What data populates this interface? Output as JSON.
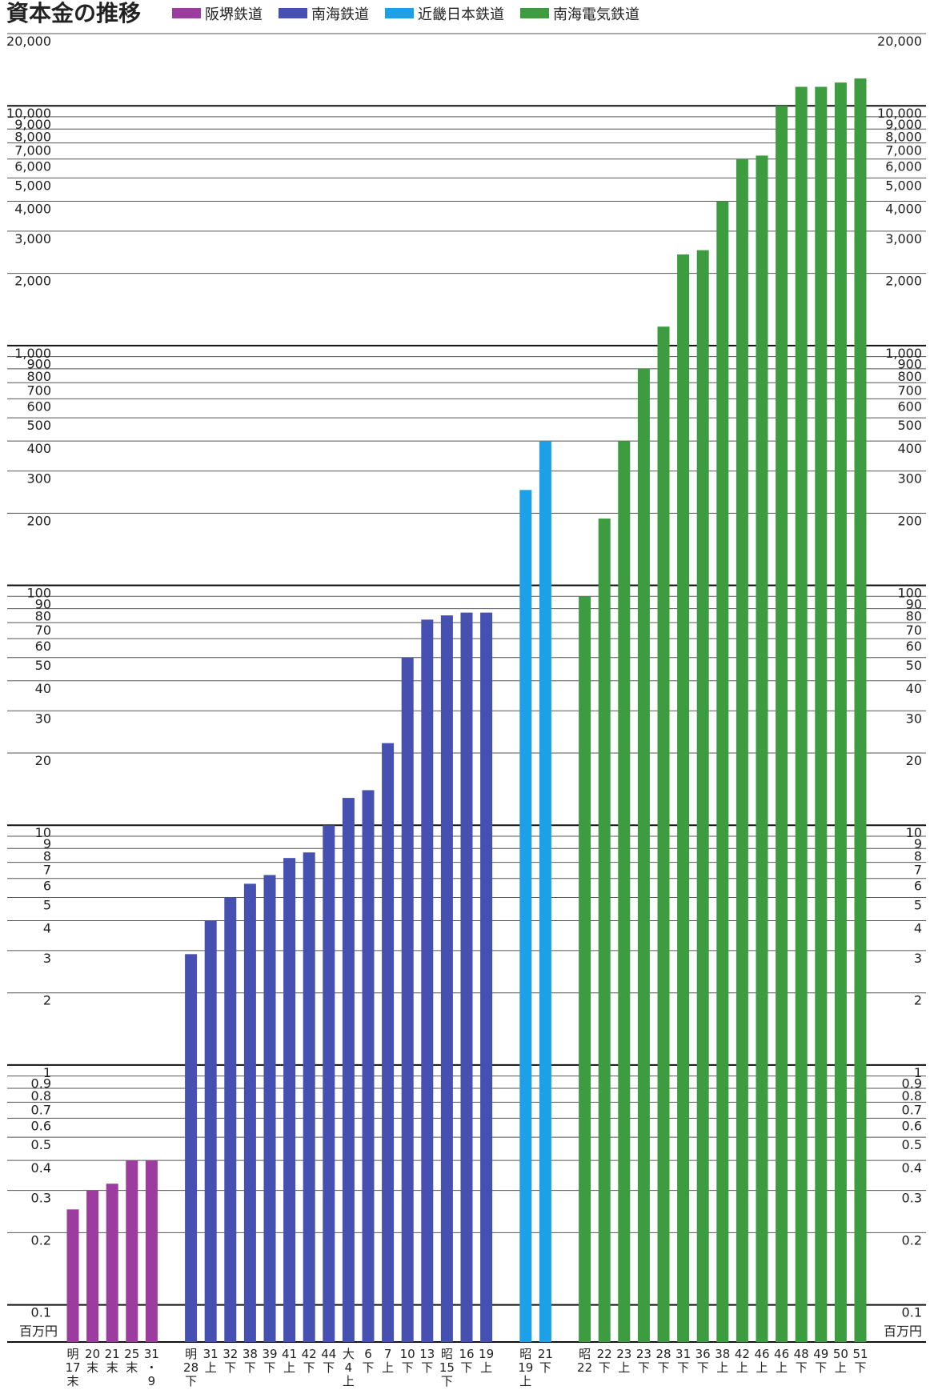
{
  "chart_data": {
    "type": "bar",
    "title": "資本金の推移",
    "y_unit": "百万円",
    "log_scale": true,
    "grid": true,
    "legend_position": "top",
    "categories": [
      "明17末",
      "20末",
      "21末",
      "25末",
      "31・9",
      "明28下",
      "31上",
      "32下",
      "38下",
      "39下",
      "41上",
      "42下",
      "44下",
      "大4上",
      "6下",
      "7上",
      "10下",
      "13下",
      "昭15下",
      "16下",
      "19上",
      "昭19上",
      "21下",
      "昭22",
      "22下",
      "23上",
      "23下",
      "28下",
      "31下",
      "36下",
      "38上",
      "42上",
      "46上",
      "46上",
      "48下",
      "49下",
      "50上",
      "51下"
    ],
    "series": [
      {
        "name": "阪堺鉄道",
        "color": "#9c3c9e",
        "values": [
          0.25,
          0.3,
          0.32,
          0.4,
          0.4,
          null,
          null,
          null,
          null,
          null,
          null,
          null,
          null,
          null,
          null,
          null,
          null,
          null,
          null,
          null,
          null,
          null,
          null,
          null,
          null,
          null,
          null,
          null,
          null,
          null,
          null,
          null,
          null,
          null,
          null,
          null,
          null,
          null
        ]
      },
      {
        "name": "南海鉄道",
        "color": "#4650b0",
        "values": [
          null,
          null,
          null,
          null,
          null,
          2.9,
          4,
          5,
          5.7,
          6.2,
          7.3,
          7.7,
          10,
          13,
          14,
          22,
          50,
          72,
          75,
          77,
          77,
          null,
          null,
          null,
          null,
          null,
          null,
          null,
          null,
          null,
          null,
          null,
          null,
          null,
          null,
          null,
          null,
          null
        ]
      },
      {
        "name": "近畿日本鉄道",
        "color": "#1ea0e6",
        "values": [
          null,
          null,
          null,
          null,
          null,
          null,
          null,
          null,
          null,
          null,
          null,
          null,
          null,
          null,
          null,
          null,
          null,
          null,
          null,
          null,
          null,
          250,
          400,
          null,
          null,
          null,
          null,
          null,
          null,
          null,
          null,
          null,
          null,
          null,
          null,
          null,
          null,
          null
        ]
      },
      {
        "name": "南海電気鉄道",
        "color": "#3d9c3f",
        "values": [
          null,
          null,
          null,
          null,
          null,
          null,
          null,
          null,
          null,
          null,
          null,
          null,
          null,
          null,
          null,
          null,
          null,
          null,
          null,
          null,
          null,
          null,
          null,
          90,
          190,
          400,
          800,
          1200,
          2400,
          2500,
          4000,
          6000,
          6200,
          10000,
          12000,
          12000,
          12500,
          13000
        ]
      }
    ],
    "ylim": [
      0.07,
      20000
    ],
    "yticks": [
      0.1,
      0.2,
      0.3,
      0.4,
      0.5,
      0.6,
      0.7,
      0.8,
      0.9,
      1,
      2,
      3,
      4,
      5,
      6,
      7,
      8,
      9,
      10,
      20,
      30,
      40,
      50,
      60,
      70,
      80,
      90,
      100,
      200,
      300,
      400,
      500,
      600,
      700,
      800,
      900,
      {
        "value": 1000,
        "label": "1,000"
      },
      {
        "value": 2000,
        "label": "2,000"
      },
      {
        "value": 3000,
        "label": "3,000"
      },
      {
        "value": 4000,
        "label": "4,000"
      },
      {
        "value": 5000,
        "label": "5,000"
      },
      {
        "value": 6000,
        "label": "6,000"
      },
      {
        "value": 7000,
        "label": "7,000"
      },
      {
        "value": 8000,
        "label": "8,000"
      },
      {
        "value": 9000,
        "label": "9,000"
      },
      {
        "value": 10000,
        "label": "10,000"
      },
      {
        "value": 20000,
        "label": "20,000"
      }
    ]
  }
}
